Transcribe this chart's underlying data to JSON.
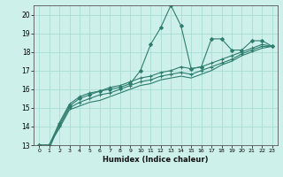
{
  "xlabel": "Humidex (Indice chaleur)",
  "bg_color": "#cef0ea",
  "grid_color": "#aaddd5",
  "line_color": "#2e7d6e",
  "x_values": [
    0,
    1,
    2,
    3,
    4,
    5,
    6,
    7,
    8,
    9,
    10,
    11,
    12,
    13,
    14,
    15,
    16,
    17,
    18,
    19,
    20,
    21,
    22,
    23
  ],
  "series": [
    [
      13.0,
      12.8,
      14.1,
      15.1,
      15.5,
      15.7,
      15.9,
      16.0,
      16.1,
      16.3,
      17.0,
      18.4,
      19.3,
      20.5,
      19.4,
      17.1,
      17.2,
      18.7,
      18.7,
      18.1,
      18.1,
      18.6,
      18.6,
      18.3
    ],
    [
      13.0,
      13.0,
      14.2,
      15.2,
      15.6,
      15.8,
      15.9,
      16.1,
      16.2,
      16.4,
      16.6,
      16.7,
      16.9,
      17.0,
      17.2,
      17.1,
      17.2,
      17.4,
      17.6,
      17.8,
      18.0,
      18.2,
      18.4,
      18.3
    ],
    [
      13.0,
      13.0,
      14.0,
      15.0,
      15.3,
      15.5,
      15.7,
      15.8,
      16.0,
      16.2,
      16.4,
      16.5,
      16.7,
      16.8,
      16.9,
      16.8,
      17.0,
      17.2,
      17.4,
      17.6,
      17.9,
      18.1,
      18.3,
      18.3
    ],
    [
      13.0,
      13.0,
      13.9,
      14.9,
      15.1,
      15.3,
      15.4,
      15.6,
      15.8,
      16.0,
      16.2,
      16.3,
      16.5,
      16.6,
      16.7,
      16.6,
      16.8,
      17.0,
      17.3,
      17.5,
      17.8,
      18.0,
      18.2,
      18.3
    ]
  ],
  "has_markers": [
    true,
    true,
    true,
    false
  ],
  "ylim": [
    13,
    20.5
  ],
  "xlim": [
    -0.5,
    23.5
  ],
  "yticks": [
    13,
    14,
    15,
    16,
    17,
    18,
    19,
    20
  ],
  "xticks": [
    0,
    1,
    2,
    3,
    4,
    5,
    6,
    7,
    8,
    9,
    10,
    11,
    12,
    13,
    14,
    15,
    16,
    17,
    18,
    19,
    20,
    21,
    22,
    23
  ],
  "ytick_labels": [
    "13",
    "14",
    "15",
    "16",
    "17",
    "18",
    "19",
    "20"
  ]
}
